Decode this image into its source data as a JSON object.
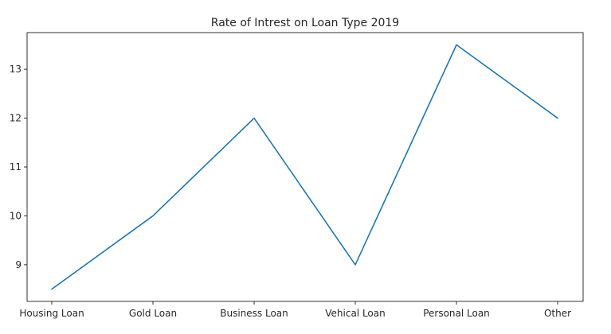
{
  "chart_data": {
    "type": "line",
    "title": "Rate of Intrest on Loan Type 2019",
    "xlabel": "",
    "ylabel": "",
    "categories": [
      "Housing Loan",
      "Gold Loan",
      "Business Loan",
      "Vehical Loan",
      "Personal Loan",
      "Other"
    ],
    "series": [
      {
        "values": [
          8.5,
          10,
          12,
          9,
          13.5,
          12
        ]
      }
    ],
    "ylim": [
      8.25,
      13.75
    ],
    "yticks": [
      9,
      10,
      11,
      12,
      13
    ],
    "grid": false,
    "colors": {
      "line": "#1f77b4",
      "axes": "#000000",
      "text": "#262626"
    }
  }
}
